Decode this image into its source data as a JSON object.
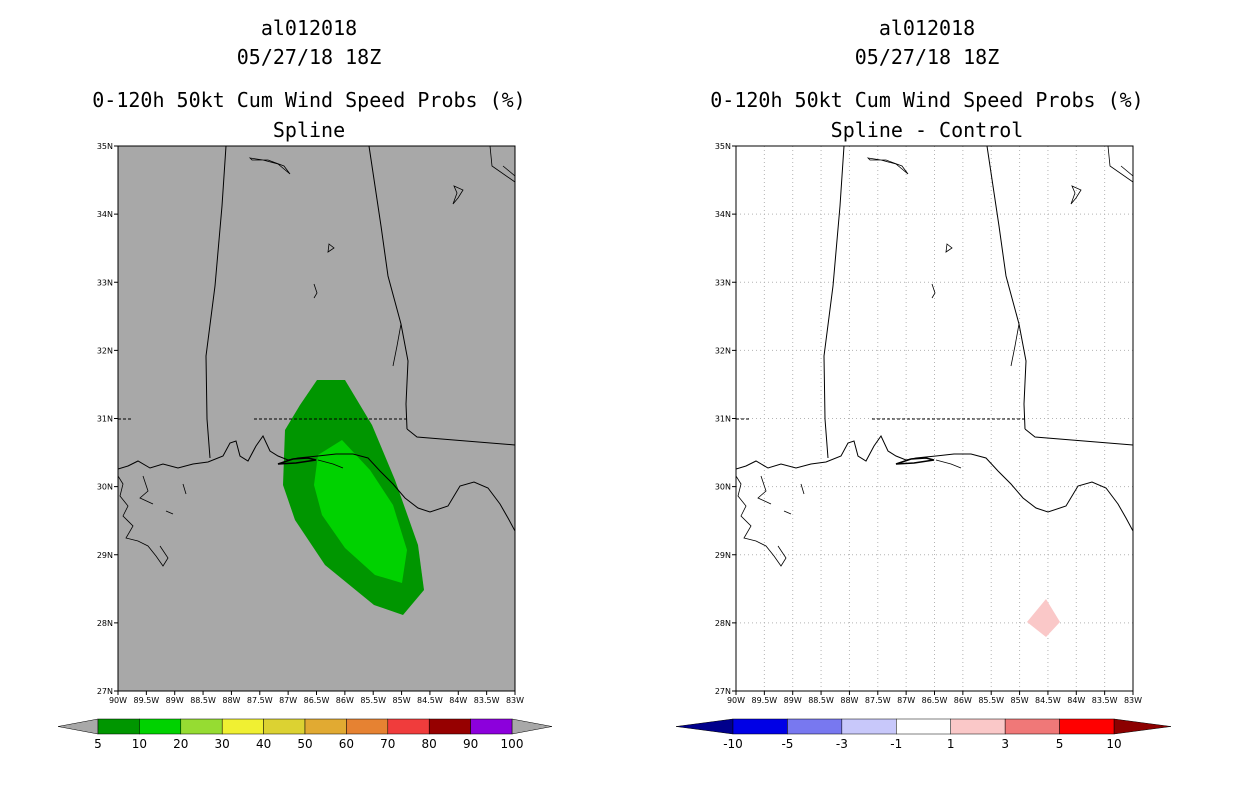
{
  "panels": [
    {
      "storm_id": "al012018",
      "datetime": "05/27/18 18Z",
      "product": "0-120h 50kt Cum Wind Speed Probs (%)",
      "subtitle": "Spline"
    },
    {
      "storm_id": "al012018",
      "datetime": "05/27/18 18Z",
      "product": "0-120h 50kt Cum Wind Speed Probs (%)",
      "subtitle": "Spline - Control"
    }
  ],
  "axes": {
    "lat_labels": [
      "35N",
      "34N",
      "33N",
      "32N",
      "31N",
      "30N",
      "29N",
      "28N",
      "27N"
    ],
    "lon_labels": [
      "90W",
      "89.5W",
      "89W",
      "88.5W",
      "88W",
      "87.5W",
      "87W",
      "86.5W",
      "86W",
      "85.5W",
      "85W",
      "84.5W",
      "84W",
      "83.5W",
      "83W"
    ]
  },
  "colorbar_left": {
    "labels": [
      "5",
      "10",
      "20",
      "30",
      "40",
      "50",
      "60",
      "70",
      "80",
      "90",
      "100"
    ],
    "colors": [
      "#009600",
      "#00d200",
      "#96dc32",
      "#f0f032",
      "#dcd232",
      "#e1aa32",
      "#e68232",
      "#f03c3c",
      "#960000",
      "#8c00dc"
    ],
    "end_color": "#a8a8a8"
  },
  "colorbar_right": {
    "labels": [
      "-10",
      "-5",
      "-3",
      "-1",
      "1",
      "3",
      "5",
      "10"
    ],
    "colors": [
      "#0000e6",
      "#7878f0",
      "#c8c8fa",
      "#ffffff",
      "#fac8c8",
      "#f07878",
      "#ff0000"
    ],
    "low_end_color": "#00008c",
    "high_end_color": "#8c0000"
  },
  "fill_colors": {
    "map_background": "#a8a8a8",
    "prob_5_10": "#009600",
    "prob_10_20": "#00d200",
    "diff_1_3": "#fac8c8"
  }
}
